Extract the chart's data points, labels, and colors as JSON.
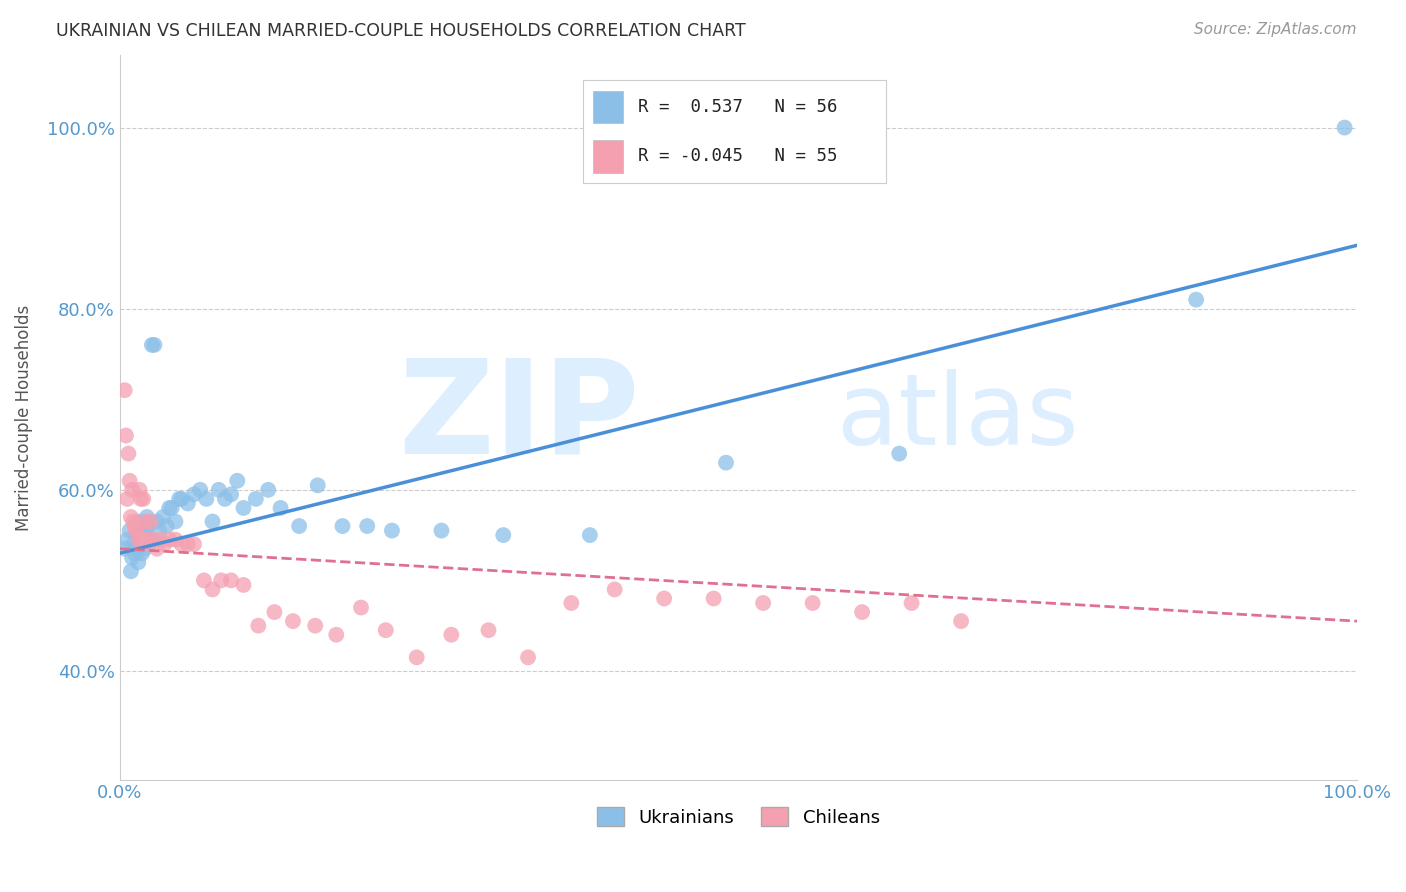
{
  "title": "UKRAINIAN VS CHILEAN MARRIED-COUPLE HOUSEHOLDS CORRELATION CHART",
  "source": "Source: ZipAtlas.com",
  "ylabel": "Married-couple Households",
  "xlim": [
    0.0,
    1.0
  ],
  "ylim": [
    0.28,
    1.08
  ],
  "xticks": [
    0.0,
    0.1,
    0.2,
    0.3,
    0.4,
    0.5,
    0.6,
    0.7,
    0.8,
    0.9,
    1.0
  ],
  "xticklabels": [
    "0.0%",
    "",
    "",
    "",
    "",
    "",
    "",
    "",
    "",
    "",
    "100.0%"
  ],
  "yticks": [
    0.4,
    0.6,
    0.8,
    1.0
  ],
  "yticklabels": [
    "40.0%",
    "60.0%",
    "80.0%",
    "100.0%"
  ],
  "legend_labels": [
    "Ukrainians",
    "Chileans"
  ],
  "legend_r0": "R =  0.537   N = 56",
  "legend_r1": "R = -0.045   N = 55",
  "blue_color": "#8bbfe8",
  "pink_color": "#f4a0b0",
  "blue_line_color": "#4a90d9",
  "pink_line_color": "#e07090",
  "watermark_zip": "ZIP",
  "watermark_atlas": "atlas",
  "watermark_color": "#ddeeff",
  "background_color": "#ffffff",
  "grid_color": "#cccccc",
  "tick_color": "#5599cc",
  "title_color": "#333333",
  "source_color": "#999999",
  "ylabel_color": "#555555",
  "ukr_line_start_y": 0.53,
  "ukr_line_end_y": 0.87,
  "chl_line_start_y": 0.535,
  "chl_line_end_y": 0.455,
  "ukrainians_x": [
    0.004,
    0.006,
    0.008,
    0.009,
    0.01,
    0.011,
    0.012,
    0.013,
    0.014,
    0.015,
    0.016,
    0.017,
    0.018,
    0.019,
    0.02,
    0.021,
    0.022,
    0.023,
    0.024,
    0.025,
    0.026,
    0.028,
    0.03,
    0.032,
    0.035,
    0.038,
    0.04,
    0.042,
    0.045,
    0.048,
    0.05,
    0.055,
    0.06,
    0.065,
    0.07,
    0.075,
    0.08,
    0.085,
    0.09,
    0.095,
    0.1,
    0.11,
    0.12,
    0.13,
    0.145,
    0.16,
    0.18,
    0.2,
    0.22,
    0.26,
    0.31,
    0.38,
    0.49,
    0.63,
    0.87,
    0.99
  ],
  "ukrainians_y": [
    0.535,
    0.545,
    0.555,
    0.51,
    0.525,
    0.54,
    0.53,
    0.535,
    0.55,
    0.52,
    0.565,
    0.545,
    0.53,
    0.56,
    0.535,
    0.55,
    0.57,
    0.56,
    0.54,
    0.545,
    0.76,
    0.76,
    0.565,
    0.555,
    0.57,
    0.56,
    0.58,
    0.58,
    0.565,
    0.59,
    0.59,
    0.585,
    0.595,
    0.6,
    0.59,
    0.565,
    0.6,
    0.59,
    0.595,
    0.61,
    0.58,
    0.59,
    0.6,
    0.58,
    0.56,
    0.605,
    0.56,
    0.56,
    0.555,
    0.555,
    0.55,
    0.55,
    0.63,
    0.64,
    0.81,
    1.0
  ],
  "chileans_x": [
    0.004,
    0.005,
    0.006,
    0.007,
    0.008,
    0.009,
    0.01,
    0.011,
    0.012,
    0.013,
    0.014,
    0.015,
    0.016,
    0.017,
    0.018,
    0.019,
    0.02,
    0.021,
    0.022,
    0.023,
    0.025,
    0.027,
    0.03,
    0.033,
    0.036,
    0.04,
    0.045,
    0.05,
    0.055,
    0.06,
    0.068,
    0.075,
    0.082,
    0.09,
    0.1,
    0.112,
    0.125,
    0.14,
    0.158,
    0.175,
    0.195,
    0.215,
    0.24,
    0.268,
    0.298,
    0.33,
    0.365,
    0.4,
    0.44,
    0.48,
    0.52,
    0.56,
    0.6,
    0.64,
    0.68
  ],
  "chileans_y": [
    0.71,
    0.66,
    0.59,
    0.64,
    0.61,
    0.57,
    0.6,
    0.565,
    0.56,
    0.555,
    0.56,
    0.545,
    0.6,
    0.59,
    0.545,
    0.59,
    0.545,
    0.565,
    0.54,
    0.545,
    0.565,
    0.545,
    0.535,
    0.545,
    0.54,
    0.545,
    0.545,
    0.54,
    0.54,
    0.54,
    0.5,
    0.49,
    0.5,
    0.5,
    0.495,
    0.45,
    0.465,
    0.455,
    0.45,
    0.44,
    0.47,
    0.445,
    0.415,
    0.44,
    0.445,
    0.415,
    0.475,
    0.49,
    0.48,
    0.48,
    0.475,
    0.475,
    0.465,
    0.475,
    0.455
  ]
}
